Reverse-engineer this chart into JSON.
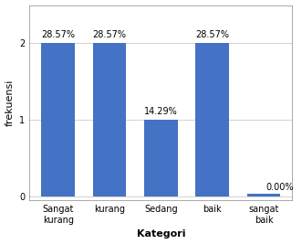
{
  "categories": [
    "Sangat\nkurang",
    "kurang",
    "Sedang",
    "baik",
    "sangat\nbaik"
  ],
  "values": [
    2,
    2,
    1,
    2,
    0.04
  ],
  "labels": [
    "28.57%",
    "28.57%",
    "14.29%",
    "28.57%",
    "0.00%"
  ],
  "bar_color": "#4472C4",
  "xlabel": "Kategori",
  "ylabel": "frekuensi",
  "ylim": [
    -0.05,
    2.5
  ],
  "yticks": [
    0,
    1,
    2
  ],
  "background_color": "#ffffff",
  "grid_color": "#c0c0c0",
  "xlabel_fontsize": 8,
  "ylabel_fontsize": 8,
  "label_fontsize": 7,
  "tick_fontsize": 7,
  "bar_width": 0.65
}
